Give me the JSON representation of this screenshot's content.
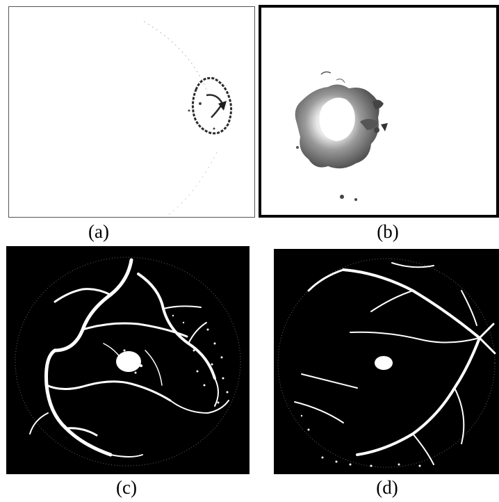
{
  "figure": {
    "panels": [
      {
        "caption": "(a)"
      },
      {
        "caption": "(b)"
      },
      {
        "caption": "(c)"
      },
      {
        "caption": "(d)"
      }
    ],
    "colors": {
      "background": "#ffffff",
      "fundus_background": "#000000",
      "vessel": "#ffffff",
      "lesion_dark": "#2a2a2a",
      "lesion_mid": "#6e6e6e"
    }
  }
}
